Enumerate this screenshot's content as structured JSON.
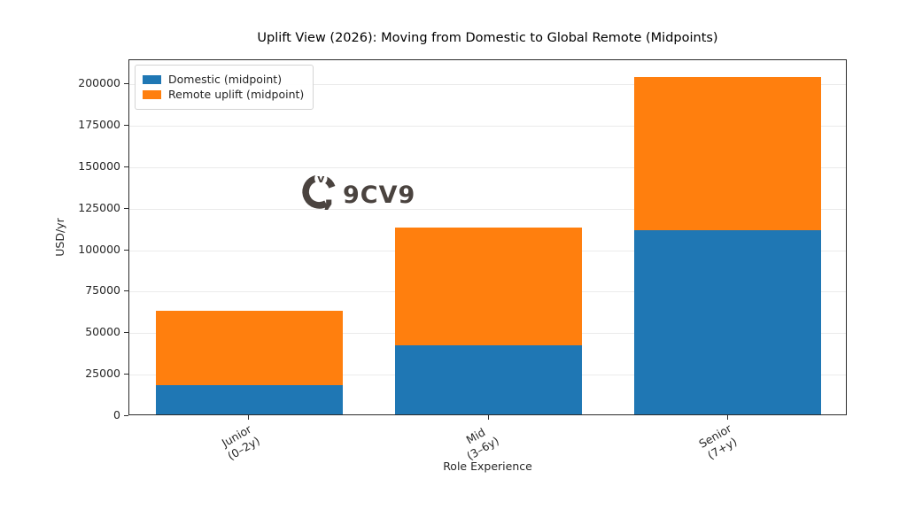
{
  "title": "Uplift View (2026): Moving from Domestic to Global Remote (Midpoints)",
  "watermark": "9CV9",
  "legend": [
    {
      "label": "Domestic (midpoint)",
      "color": "#1f77b4"
    },
    {
      "label": "Remote uplift (midpoint)",
      "color": "#ff7f0e"
    }
  ],
  "chart_data": {
    "type": "bar",
    "stacked": true,
    "title": "Uplift View (2026): Moving from Domestic to Global Remote (Midpoints)",
    "xlabel": "Role Experience",
    "ylabel": "USD/yr",
    "categories": [
      "Junior\n(0–2y)",
      "Mid\n(3–6y)",
      "Senior\n(7+y)"
    ],
    "series": [
      {
        "name": "Domestic (midpoint)",
        "color": "#1f77b4",
        "values": [
          17500,
          41500,
          111000
        ]
      },
      {
        "name": "Remote uplift (midpoint)",
        "color": "#ff7f0e",
        "values": [
          45000,
          71000,
          92500
        ]
      }
    ],
    "stacked_totals": [
      62500,
      112500,
      203500
    ],
    "ylim": [
      0,
      214500
    ],
    "yticks": [
      0,
      25000,
      50000,
      75000,
      100000,
      125000,
      150000,
      175000,
      200000
    ],
    "grid": true,
    "legend_position": "upper left",
    "bar_width_fraction": 0.78
  }
}
